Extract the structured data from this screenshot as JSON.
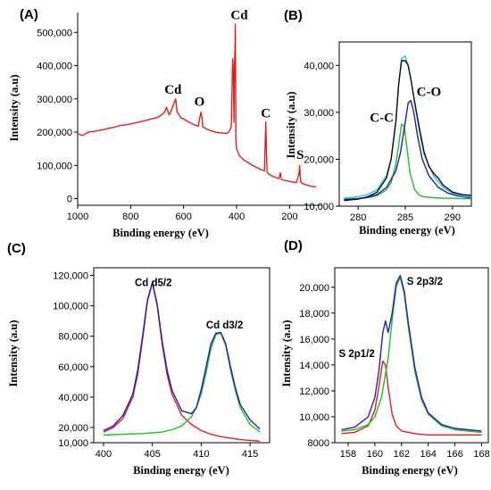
{
  "chart_data": [
    {
      "id": "A",
      "panel_label": "(A)",
      "type": "line",
      "xlabel": "Binding energy (eV)",
      "ylabel": "Intensity (a.u)",
      "xlim": [
        1000,
        80
      ],
      "ylim": [
        -20000,
        560000
      ],
      "x_reversed": true,
      "xticks": [
        1000,
        800,
        600,
        400,
        200
      ],
      "xtick_labels": [
        "1000",
        "800",
        "600",
        "400",
        "200"
      ],
      "yticks": [
        0,
        100000,
        200000,
        300000,
        400000,
        500000
      ],
      "ytick_labels": [
        "0",
        "100,000",
        "200,000",
        "300,000",
        "400,000",
        "500,000"
      ],
      "box": "axes-left-bottom",
      "series": [
        {
          "color": "#e02020",
          "x": [
            1000,
            980,
            960,
            940,
            920,
            900,
            880,
            860,
            840,
            820,
            800,
            780,
            760,
            740,
            720,
            700,
            690,
            680,
            670,
            665,
            660,
            655,
            650,
            640,
            630,
            625,
            620,
            615,
            610,
            600,
            590,
            580,
            570,
            560,
            545,
            535,
            530,
            528,
            520,
            500,
            480,
            460,
            440,
            430,
            420,
            415,
            412,
            410,
            408,
            406,
            405,
            404,
            403,
            400,
            395,
            390,
            380,
            370,
            360,
            350,
            340,
            330,
            320,
            310,
            300,
            295,
            290,
            287,
            285,
            283,
            280,
            275,
            270,
            260,
            250,
            240,
            235,
            232,
            230,
            220,
            200,
            190,
            175,
            165,
            162,
            160,
            158,
            150,
            140,
            120,
            100
          ],
          "y": [
            195000,
            190000,
            200000,
            202000,
            205000,
            208000,
            212000,
            215000,
            220000,
            222000,
            225000,
            228000,
            232000,
            236000,
            240000,
            244000,
            248000,
            255000,
            262000,
            275000,
            265000,
            252000,
            258000,
            280000,
            300000,
            262000,
            255000,
            250000,
            243000,
            240000,
            235000,
            230000,
            226000,
            222000,
            218000,
            260000,
            240000,
            216000,
            212000,
            205000,
            200000,
            198000,
            196000,
            200000,
            215000,
            420000,
            380000,
            230000,
            410000,
            450000,
            525000,
            410000,
            180000,
            150000,
            140000,
            130000,
            122000,
            115000,
            110000,
            105000,
            100000,
            96000,
            92000,
            88000,
            85000,
            84000,
            230000,
            130000,
            82000,
            78000,
            75000,
            72000,
            70000,
            66000,
            63000,
            60000,
            78000,
            62000,
            58000,
            55000,
            52000,
            50000,
            48000,
            72000,
            100000,
            68000,
            50000,
            45000,
            42000,
            38000,
            35000
          ]
        }
      ],
      "annotations": [
        {
          "text": "Cd",
          "x": 640,
          "y": 315000
        },
        {
          "text": "O",
          "x": 540,
          "y": 280000
        },
        {
          "text": "Cd",
          "x": 390,
          "y": 540000
        },
        {
          "text": "C",
          "x": 290,
          "y": 245000
        },
        {
          "text": "S",
          "x": 160,
          "y": 120000
        }
      ]
    },
    {
      "id": "B",
      "panel_label": "(B)",
      "type": "line",
      "xlabel": "Binding energy (eV)",
      "ylabel": "Intensity (a.u)",
      "xlim": [
        278,
        292
      ],
      "ylim": [
        10000,
        45000
      ],
      "x_reversed": false,
      "xticks": [
        280,
        285,
        290
      ],
      "xtick_labels": [
        "280",
        "285",
        "290"
      ],
      "yticks": [
        10000,
        20000,
        30000,
        40000
      ],
      "ytick_labels": [
        "10,000",
        "20,000",
        "30,000",
        "40,000"
      ],
      "box": "full",
      "series": [
        {
          "color": "#20c020",
          "x": [
            278.5,
            280,
            281,
            282,
            283,
            283.5,
            284,
            284.3,
            284.6,
            284.9,
            285.2,
            285.5,
            286,
            286.5,
            287,
            288,
            289,
            290,
            291,
            292
          ],
          "y": [
            11500,
            11600,
            11800,
            12200,
            13500,
            15000,
            19000,
            23000,
            27500,
            27000,
            22000,
            17000,
            13500,
            12300,
            12000,
            11800,
            11700,
            11700,
            11600,
            11600
          ]
        },
        {
          "color": "#2020c0",
          "x": [
            278.5,
            280,
            281,
            282,
            283,
            284,
            284.5,
            285,
            285.3,
            285.6,
            285.9,
            286.3,
            286.8,
            287.5,
            288.5,
            289.5,
            290.5,
            291.5,
            292
          ],
          "y": [
            11400,
            11600,
            11900,
            12500,
            14000,
            17500,
            21500,
            28000,
            32000,
            32500,
            30000,
            25000,
            20000,
            16500,
            14000,
            12800,
            12200,
            11900,
            11800
          ]
        },
        {
          "color": "#20c8d8",
          "x": [
            278.5,
            280,
            281,
            282,
            283,
            283.5,
            284,
            284.3,
            284.6,
            285,
            285.3,
            285.6,
            286,
            286.5,
            287,
            288,
            289,
            290,
            291,
            292
          ],
          "y": [
            11700,
            12000,
            12500,
            13500,
            16500,
            20000,
            28000,
            36000,
            41500,
            42000,
            40000,
            37000,
            32000,
            26000,
            21000,
            16500,
            14000,
            12800,
            12200,
            12000
          ]
        },
        {
          "color": "#111111",
          "x": [
            278.5,
            280,
            281,
            282,
            283,
            283.5,
            284,
            284.3,
            284.6,
            285,
            285.3,
            285.6,
            286,
            286.5,
            287,
            287.5,
            288,
            288.5,
            289,
            290,
            291,
            292
          ],
          "y": [
            11200,
            11500,
            12000,
            13000,
            16000,
            20000,
            28000,
            36000,
            41000,
            41000,
            40000,
            37000,
            32000,
            26500,
            21500,
            18500,
            17000,
            16000,
            14500,
            13000,
            12500,
            12300
          ]
        }
      ],
      "annotations": [
        {
          "text": "C-C",
          "x": 282.5,
          "y": 28000
        },
        {
          "text": "C-O",
          "x": 287.5,
          "y": 33500
        }
      ]
    },
    {
      "id": "C",
      "panel_label": "(C)",
      "type": "line",
      "xlabel": "Binding energy (eV)",
      "ylabel": "Intensity (a.u)",
      "xlim": [
        399,
        417
      ],
      "ylim": [
        10000,
        125000
      ],
      "x_reversed": false,
      "xticks": [
        400,
        405,
        410,
        415
      ],
      "xtick_labels": [
        "400",
        "405",
        "410",
        "415"
      ],
      "yticks": [
        10000,
        20000,
        40000,
        60000,
        80000,
        100000,
        120000
      ],
      "ytick_labels": [
        "10,000",
        "20,000",
        "40,000",
        "60,000",
        "80,000",
        "100,000",
        "120,000"
      ],
      "box": "full",
      "series": [
        {
          "color": "#e02020",
          "x": [
            400,
            401,
            402,
            403,
            403.5,
            404,
            404.5,
            405,
            405.5,
            406,
            406.5,
            407,
            408,
            409,
            410,
            411,
            412,
            413,
            414,
            415,
            416
          ],
          "y": [
            17000,
            20000,
            26000,
            40000,
            55000,
            78000,
            103000,
            115000,
            100000,
            75000,
            55000,
            42000,
            28000,
            22000,
            18000,
            15500,
            14000,
            13000,
            12000,
            11500,
            11000
          ]
        },
        {
          "color": "#20c020",
          "x": [
            400,
            402,
            404,
            406,
            407,
            408,
            409,
            409.5,
            410,
            410.5,
            411,
            411.5,
            412,
            412.5,
            413,
            413.5,
            414,
            415,
            416
          ],
          "y": [
            15000,
            15500,
            16000,
            17000,
            18500,
            21000,
            27000,
            33000,
            42000,
            56000,
            72000,
            81000,
            82000,
            74000,
            58000,
            44000,
            33000,
            22000,
            17000
          ]
        },
        {
          "color": "#2020c0",
          "x": [
            400,
            401,
            402,
            403,
            403.5,
            404,
            404.5,
            405,
            405.5,
            406,
            406.5,
            407,
            408,
            409,
            409.5,
            410,
            410.5,
            411,
            411.5,
            412,
            412.5,
            413,
            413.5,
            414,
            415,
            416
          ],
          "y": [
            18000,
            21000,
            28000,
            42000,
            58000,
            80000,
            104000,
            115500,
            101000,
            77000,
            58000,
            44500,
            31000,
            29000,
            33000,
            45000,
            60000,
            75000,
            82000,
            82500,
            75000,
            60000,
            46000,
            35000,
            25000,
            19000
          ]
        }
      ],
      "annotations": [
        {
          "text": "Cd d5/2",
          "x": 403.2,
          "y": 113000
        },
        {
          "text": "Cd d3/2",
          "x": 410.5,
          "y": 85000
        }
      ]
    },
    {
      "id": "D",
      "panel_label": "(D)",
      "type": "line",
      "xlabel": "Binding energy (eV)",
      "ylabel": "Intensity (a.u)",
      "xlim": [
        157,
        168.5
      ],
      "ylim": [
        8000,
        21500
      ],
      "x_reversed": false,
      "xticks": [
        158,
        160,
        162,
        164,
        166,
        168
      ],
      "xtick_labels": [
        "158",
        "160",
        "162",
        "164",
        "166",
        "168"
      ],
      "yticks": [
        8000,
        10000,
        12000,
        14000,
        16000,
        18000,
        20000
      ],
      "ytick_labels": [
        "8000",
        "10,000",
        "12,000",
        "14,000",
        "16,000",
        "18,000",
        "20,000"
      ],
      "box": "full",
      "series": [
        {
          "color": "#e02020",
          "x": [
            157.5,
            158.5,
            159.5,
            160,
            160.3,
            160.6,
            160.8,
            161,
            161.3,
            161.6,
            162,
            163,
            164,
            166,
            168
          ],
          "y": [
            8700,
            8800,
            9300,
            10500,
            12300,
            14300,
            14000,
            12300,
            10200,
            9300,
            8900,
            8700,
            8600,
            8600,
            8600
          ]
        },
        {
          "color": "#20c020",
          "x": [
            157.5,
            158.5,
            159.5,
            160,
            160.5,
            161,
            161.3,
            161.6,
            161.9,
            162.2,
            162.5,
            163,
            163.5,
            164,
            165,
            166,
            168
          ],
          "y": [
            8900,
            9000,
            9400,
            10000,
            11500,
            14500,
            17500,
            20000,
            20800,
            19500,
            17000,
            13500,
            11300,
            10200,
            9300,
            9000,
            8800
          ]
        },
        {
          "color": "#2020c0",
          "x": [
            157.5,
            158.5,
            159.5,
            160,
            160.3,
            160.6,
            160.8,
            161,
            161.3,
            161.6,
            161.9,
            162.2,
            162.5,
            163,
            163.5,
            164,
            165,
            166,
            168
          ],
          "y": [
            9000,
            9200,
            10000,
            11500,
            13500,
            16500,
            17400,
            16500,
            18000,
            20300,
            20900,
            19700,
            17300,
            13800,
            11500,
            10300,
            9400,
            9100,
            8900
          ]
        }
      ],
      "annotations": [
        {
          "text": "S 2p3/2",
          "x": 162.4,
          "y": 20200
        },
        {
          "text": "S 2p1/2",
          "x": 157.3,
          "y": 14600
        }
      ]
    }
  ]
}
